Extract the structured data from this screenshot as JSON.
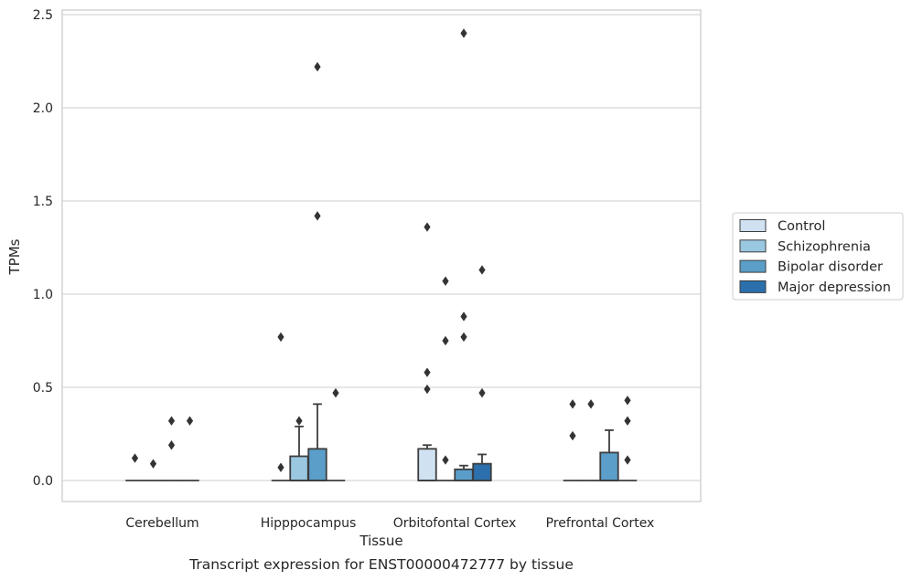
{
  "caption": "Transcript expression for ENST00000472777 by tissue",
  "chart_data": {
    "type": "box",
    "xlabel": "Tissue",
    "ylabel": "TPMs",
    "ylim": [
      -0.12,
      2.53
    ],
    "yticks": [
      "0.0",
      "0.5",
      "1.0",
      "1.5",
      "2.0",
      "2.5"
    ],
    "grid": "horizontal",
    "legend_position": "right",
    "categories": [
      "Cerebellum",
      "Hipppocampus",
      "Orbitofontal Cortex",
      "Prefrontal Cortex"
    ],
    "series": [
      {
        "name": "Control",
        "color": "#d0e2f2",
        "boxes": [
          {
            "q1": 0,
            "median": 0,
            "q3": 0,
            "whislo": 0,
            "whishi": 0,
            "fliers": [
              0.12
            ]
          },
          {
            "q1": 0,
            "median": 0,
            "q3": 0,
            "whislo": 0,
            "whishi": 0,
            "fliers": [
              0.77,
              0.07
            ]
          },
          {
            "q1": 0,
            "median": 0,
            "q3": 0.17,
            "whislo": 0,
            "whishi": 0.19,
            "fliers": [
              1.36,
              0.58,
              0.49
            ]
          },
          {
            "q1": 0,
            "median": 0,
            "q3": 0,
            "whislo": 0,
            "whishi": 0,
            "fliers": [
              0.41,
              0.24
            ]
          }
        ]
      },
      {
        "name": "Schizophrenia",
        "color": "#9ac8e0",
        "boxes": [
          {
            "q1": 0,
            "median": 0,
            "q3": 0,
            "whislo": 0,
            "whishi": 0,
            "fliers": [
              0.09
            ]
          },
          {
            "q1": 0,
            "median": 0,
            "q3": 0.13,
            "whislo": 0,
            "whishi": 0.29,
            "fliers": [
              0.32
            ]
          },
          {
            "q1": 0,
            "median": 0,
            "q3": 0,
            "whislo": 0,
            "whishi": 0,
            "fliers": [
              1.07,
              0.75,
              0.11
            ]
          },
          {
            "q1": 0,
            "median": 0,
            "q3": 0,
            "whislo": 0,
            "whishi": 0,
            "fliers": [
              0.41
            ]
          }
        ]
      },
      {
        "name": "Bipolar disorder",
        "color": "#5a9ec9",
        "boxes": [
          {
            "q1": 0,
            "median": 0,
            "q3": 0,
            "whislo": 0,
            "whishi": 0,
            "fliers": [
              0.32,
              0.19
            ]
          },
          {
            "q1": 0,
            "median": 0,
            "q3": 0.17,
            "whislo": 0,
            "whishi": 0.41,
            "fliers": [
              2.22,
              1.42
            ]
          },
          {
            "q1": 0,
            "median": 0,
            "q3": 0.06,
            "whislo": 0,
            "whishi": 0.08,
            "fliers": [
              2.4,
              0.88,
              0.77
            ]
          },
          {
            "q1": 0,
            "median": 0,
            "q3": 0.15,
            "whislo": 0,
            "whishi": 0.27,
            "fliers": []
          }
        ]
      },
      {
        "name": "Major depression",
        "color": "#2c6fad",
        "boxes": [
          {
            "q1": 0,
            "median": 0,
            "q3": 0,
            "whislo": 0,
            "whishi": 0,
            "fliers": [
              0.32
            ]
          },
          {
            "q1": 0,
            "median": 0,
            "q3": 0,
            "whislo": 0,
            "whishi": 0,
            "fliers": [
              0.47
            ]
          },
          {
            "q1": 0,
            "median": 0,
            "q3": 0.09,
            "whislo": 0,
            "whishi": 0.14,
            "fliers": [
              1.13,
              0.47
            ]
          },
          {
            "q1": 0,
            "median": 0,
            "q3": 0,
            "whislo": 0,
            "whishi": 0,
            "fliers": [
              0.43,
              0.32,
              0.11
            ]
          }
        ]
      }
    ]
  }
}
